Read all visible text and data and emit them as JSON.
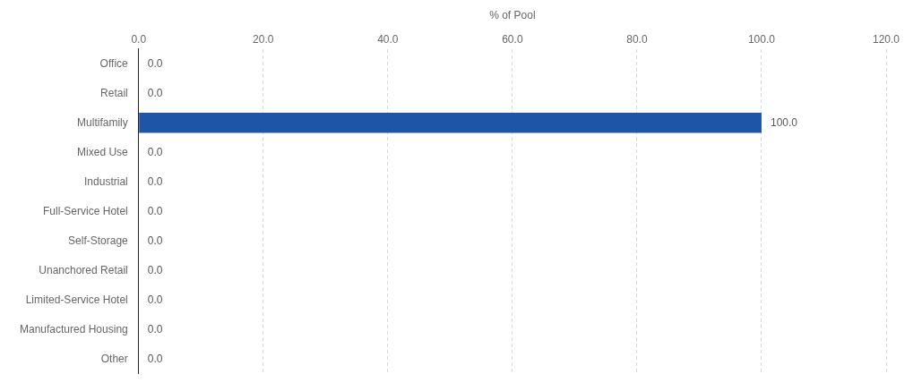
{
  "chart_data": {
    "type": "bar",
    "orientation": "horizontal",
    "xlabel": "% of Pool",
    "categories": [
      "Office",
      "Retail",
      "Multifamily",
      "Mixed Use",
      "Industrial",
      "Full-Service Hotel",
      "Self-Storage",
      "Unanchored Retail",
      "Limited-Service Hotel",
      "Manufactured Housing",
      "Other"
    ],
    "values": [
      0,
      0,
      100,
      0,
      0,
      0,
      0,
      0,
      0,
      0,
      0
    ],
    "value_labels": [
      "0.0",
      "0.0",
      "100.0",
      "0.0",
      "0.0",
      "0.0",
      "0.0",
      "0.0",
      "0.0",
      "0.0",
      "0.0"
    ],
    "color": "#1f55a5",
    "xlim": [
      0,
      120
    ],
    "xticks": [
      {
        "value": 0,
        "label": "0.0"
      },
      {
        "value": 20,
        "label": "20.0"
      },
      {
        "value": 40,
        "label": "40.0"
      },
      {
        "value": 60,
        "label": "60.0"
      },
      {
        "value": 80,
        "label": "80.0"
      },
      {
        "value": 100,
        "label": "100.0"
      },
      {
        "value": 120,
        "label": "120.0"
      }
    ],
    "grid": "x"
  }
}
